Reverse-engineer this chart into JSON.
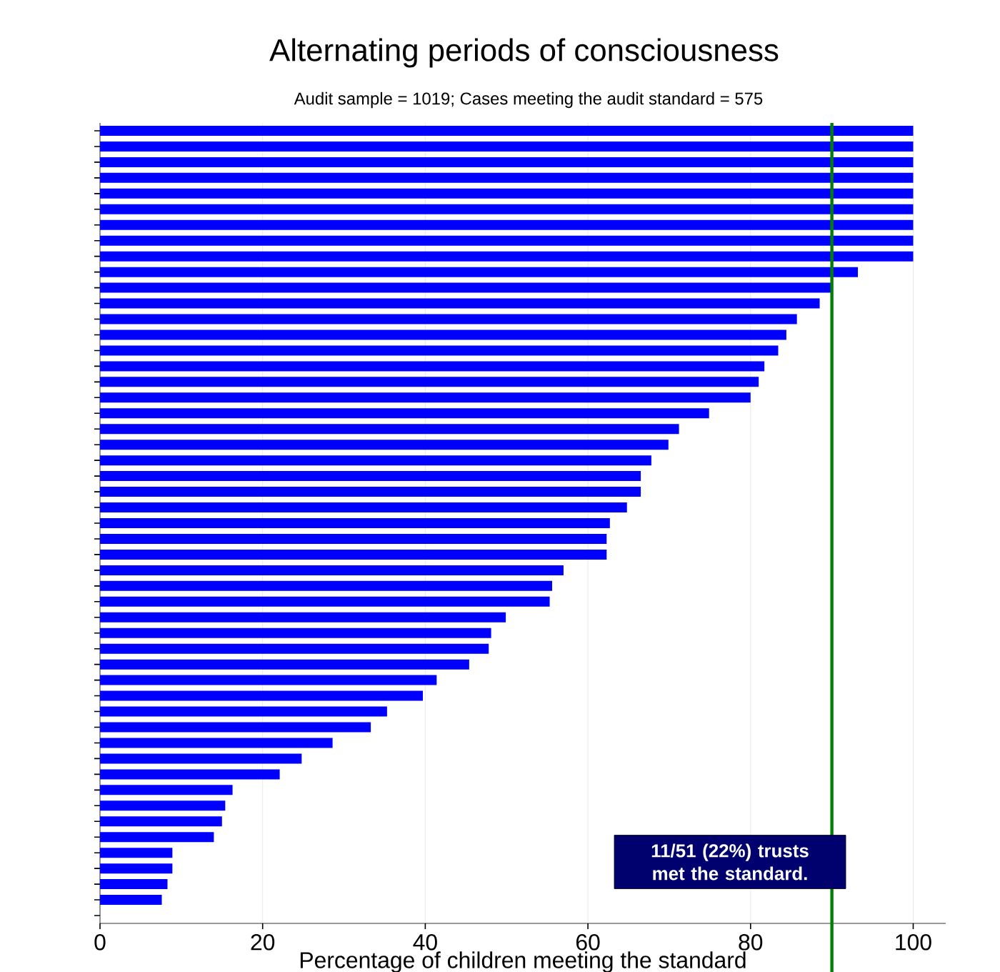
{
  "chart_data": {
    "type": "bar",
    "orientation": "horizontal",
    "title": "Alternating periods of consciousness",
    "subtitle": "Audit sample = 1019; Cases meeting the audit standard = 575",
    "xlabel": "Percentage of children meeting the standard",
    "categories": [
      null,
      null,
      null,
      null,
      null,
      null,
      null,
      null,
      null,
      null,
      null,
      null,
      null,
      null,
      null,
      null,
      null,
      null,
      null,
      null,
      null,
      null,
      null,
      null,
      null,
      null,
      null,
      null,
      null,
      null,
      null,
      null,
      null,
      null,
      null,
      null,
      null,
      null,
      null,
      null,
      null,
      null,
      null,
      null,
      null,
      null,
      null,
      null,
      null,
      null,
      null
    ],
    "values": [
      100,
      100,
      100,
      100,
      100,
      100,
      100,
      100,
      100,
      93.2,
      90.1,
      88.5,
      85.7,
      84.4,
      83.4,
      81.7,
      81.0,
      80.0,
      74.9,
      71.2,
      69.9,
      67.8,
      66.5,
      66.5,
      64.8,
      62.7,
      62.3,
      62.3,
      57.0,
      55.6,
      55.3,
      49.9,
      48.1,
      47.8,
      45.4,
      41.4,
      39.7,
      35.3,
      33.3,
      28.6,
      24.8,
      22.1,
      16.3,
      15.4,
      15.0,
      14.0,
      8.9,
      8.9,
      8.3,
      7.6,
      0
    ],
    "color": "#0000ff",
    "xlim": [
      0,
      104
    ],
    "xticks": [
      0,
      20,
      40,
      60,
      80,
      100
    ],
    "grid": "x",
    "ref_lines": [
      {
        "axis": "x",
        "value": 90,
        "color": "#008000"
      }
    ],
    "annotations": [
      "11/51 (22%) trusts met the standard."
    ]
  }
}
